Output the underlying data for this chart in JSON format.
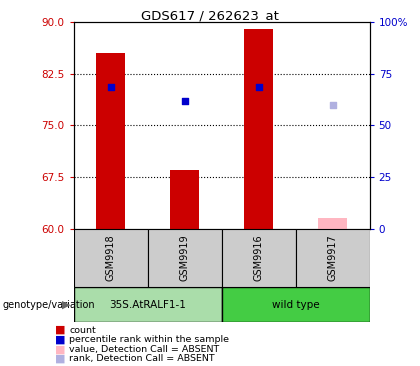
{
  "title": "GDS617 / 262623_at",
  "samples": [
    "GSM9918",
    "GSM9919",
    "GSM9916",
    "GSM9917"
  ],
  "bar_bottom": 60,
  "ylim_left": [
    60,
    90
  ],
  "ylim_right": [
    0,
    100
  ],
  "yticks_left": [
    60,
    67.5,
    75,
    82.5,
    90
  ],
  "yticks_right": [
    0,
    25,
    50,
    75,
    100
  ],
  "yticklabels_right": [
    "0",
    "25",
    "50",
    "75",
    "100%"
  ],
  "bar_values": [
    85.5,
    68.5,
    89.0,
    null
  ],
  "bar_color_normal": "#cc0000",
  "bar_color_absent": "#ffb6c1",
  "dot_values": [
    80.5,
    78.5,
    80.5,
    null
  ],
  "dot_color_normal": "#0000cc",
  "dot_color_absent": "#b0b0e0",
  "absent_bar_value": 61.5,
  "absent_dot_value": 78.0,
  "absent_sample_idx": 3,
  "legend_items": [
    {
      "color": "#cc0000",
      "label": "count"
    },
    {
      "color": "#0000cc",
      "label": "percentile rank within the sample"
    },
    {
      "color": "#ffb6c1",
      "label": "value, Detection Call = ABSENT"
    },
    {
      "color": "#b0b0e0",
      "label": "rank, Detection Call = ABSENT"
    }
  ],
  "genotype_label": "genotype/variation",
  "group_label_1": "35S.AtRALF1-1",
  "group_label_2": "wild type",
  "group_color_1": "#aaddaa",
  "group_color_2": "#44cc44",
  "sample_box_color": "#cccccc",
  "left_axis_color": "#cc0000",
  "right_axis_color": "#0000cc",
  "bar_width": 0.4
}
